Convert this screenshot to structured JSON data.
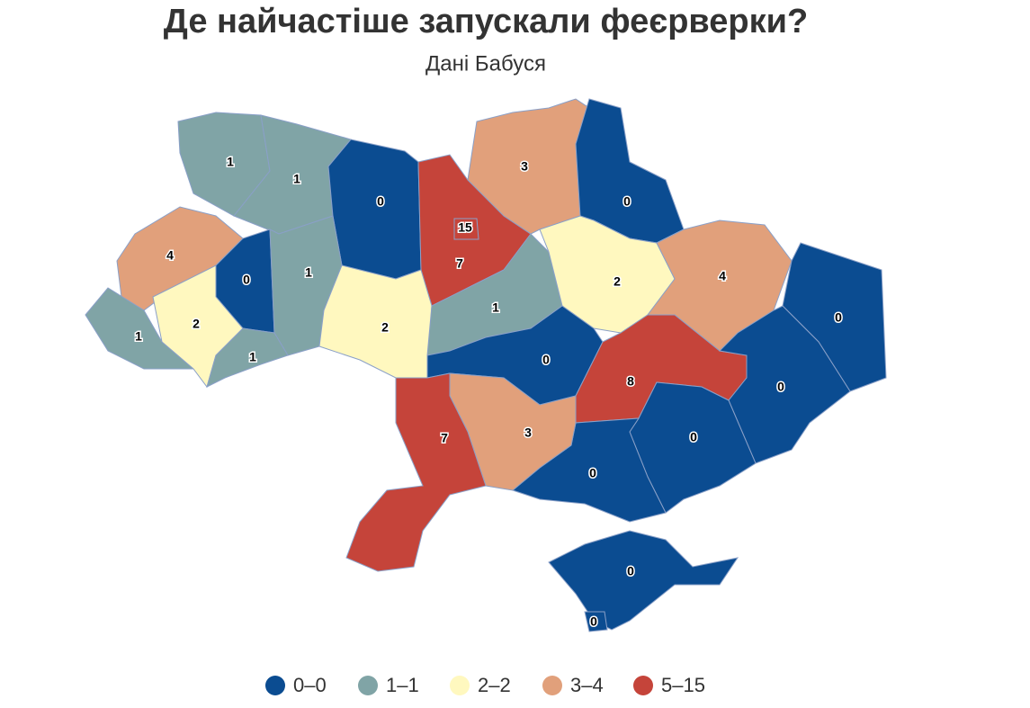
{
  "title": "Де найчастіше запускали феєрверки?",
  "subtitle": "Дані Бабуся",
  "legend": [
    {
      "label": "0–0",
      "min": 0,
      "max": 0,
      "color": "#0b4c91"
    },
    {
      "label": "1–1",
      "min": 1,
      "max": 1,
      "color": "#80a4a6"
    },
    {
      "label": "2–2",
      "min": 2,
      "max": 2,
      "color": "#fff8bf"
    },
    {
      "label": "3–4",
      "min": 3,
      "max": 4,
      "color": "#e1a07b"
    },
    {
      "label": "5–15",
      "min": 5,
      "max": 15,
      "color": "#c5443a"
    }
  ],
  "regions": [
    {
      "value": 1
    },
    {
      "value": 1
    },
    {
      "value": 0
    },
    {
      "value": 7
    },
    {
      "value": 3
    },
    {
      "value": 0
    },
    {
      "value": 4
    },
    {
      "value": 0
    },
    {
      "value": 1
    },
    {
      "value": 1
    },
    {
      "value": 2
    },
    {
      "value": 1
    },
    {
      "value": 2
    },
    {
      "value": 1
    },
    {
      "value": 2
    },
    {
      "value": 4
    },
    {
      "value": 0
    },
    {
      "value": 0
    },
    {
      "value": 8
    },
    {
      "value": 0
    },
    {
      "value": 0
    },
    {
      "value": 0
    },
    {
      "value": 3
    },
    {
      "value": 7
    },
    {
      "value": 0
    },
    {
      "value": 0
    },
    {
      "value": 15
    }
  ]
}
